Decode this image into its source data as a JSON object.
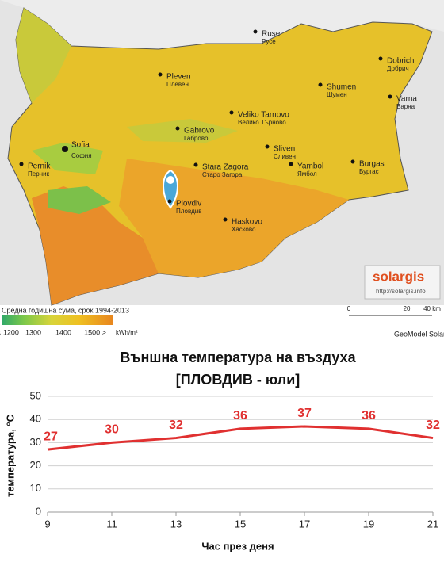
{
  "map": {
    "cities": [
      {
        "name": "Ruse",
        "local": "Русе"
      },
      {
        "name": "Dobrich",
        "local": "Добрич"
      },
      {
        "name": "Pleven",
        "local": "Плевен"
      },
      {
        "name": "Shumen",
        "local": "Шумен"
      },
      {
        "name": "Varna",
        "local": "Варна"
      },
      {
        "name": "Veliko Tarnovo",
        "local": "Велико Търново"
      },
      {
        "name": "Gabrovo",
        "local": "Габрово"
      },
      {
        "name": "Sofia",
        "local": "София"
      },
      {
        "name": "Pernik",
        "local": "Перник"
      },
      {
        "name": "Sliven",
        "local": "Сливен"
      },
      {
        "name": "Burgas",
        "local": "Бургас"
      },
      {
        "name": "Stara Zagora",
        "local": "Старо Загора"
      },
      {
        "name": "Yambol",
        "local": "Ямбол"
      },
      {
        "name": "Plovdiv",
        "local": "Пловдив"
      },
      {
        "name": "Haskovo",
        "local": "Хасково"
      }
    ],
    "logo": "solargis",
    "url": "http://solargis.info",
    "legend_title": "Средна годишна сума, срок 1994-2013",
    "legend_labels": [
      "< 1200",
      "1300",
      "1400",
      "1500 >"
    ],
    "legend_unit": "kWh/m²",
    "scale_labels": [
      "0",
      "20",
      "40 km"
    ],
    "credit": "GeoModel Solar"
  },
  "chart_data": {
    "type": "line",
    "title": "Външна температура на въздуха",
    "subtitle": "[ПЛОВДИВ - юли]",
    "y_label": "температура, °C",
    "x_label": "Час през деня",
    "x": [
      9,
      11,
      13,
      15,
      17,
      19,
      21
    ],
    "values": [
      27,
      30,
      32,
      36,
      37,
      36,
      32
    ],
    "color": "#e03030",
    "xlim": [
      9,
      21
    ],
    "xticks": [
      9,
      11,
      13,
      15,
      17,
      19,
      21
    ],
    "ylim": [
      0,
      50
    ],
    "yticks": [
      0,
      10,
      20,
      30,
      40,
      50
    ],
    "grid": true
  }
}
